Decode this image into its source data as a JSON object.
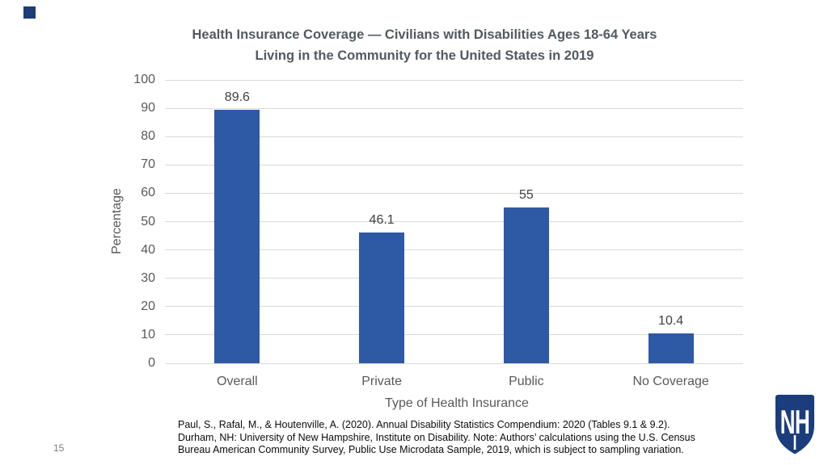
{
  "slide": {
    "page_number": "15"
  },
  "chart_data": {
    "type": "bar",
    "title": "Health Insurance Coverage — Civilians with Disabilities Ages 18-64 Years Living in the Community for the United States in 2019",
    "title_line1": "Health Insurance Coverage — Civilians with Disabilities Ages 18-64 Years",
    "title_line2": "Living in the Community for the United States in 2019",
    "categories": [
      "Overall",
      "Private",
      "Public",
      "No Coverage"
    ],
    "values": [
      89.6,
      46.1,
      55,
      10.4
    ],
    "value_labels": [
      "89.6",
      "46.1",
      "55",
      "10.4"
    ],
    "xlabel": "Type of Health Insurance",
    "ylabel": "Percentage",
    "ylim": [
      0,
      100
    ],
    "yticks": [
      "100",
      "90",
      "80",
      "70",
      "60",
      "50",
      "40",
      "30",
      "20",
      "10",
      "0"
    ],
    "grid": "horizontal",
    "legend": "none",
    "colors": {
      "bar": "#2E59A5",
      "gridline": "#D9D9D9",
      "axis_text": "#595959",
      "value_label": "#404040",
      "title": "#515A60"
    }
  },
  "citation": {
    "lines": [
      "Paul, S., Rafal, M., & Houtenville, A. (2020). Annual Disability Statistics Compendium: 2020 (Tables 9.1 & 9.2).",
      "Durham, NH: University of New Hampshire, Institute on Disability. Note: Authors’ calculations using the U.S. Census",
      "Bureau American Community Survey, Public Use Microdata Sample, 2019, which is subject to sampling variation."
    ]
  },
  "logo": {
    "monogram": "NH",
    "shield_color": "#1B3D7D"
  },
  "decor": {
    "corner_square_color": "#1E3C78"
  }
}
